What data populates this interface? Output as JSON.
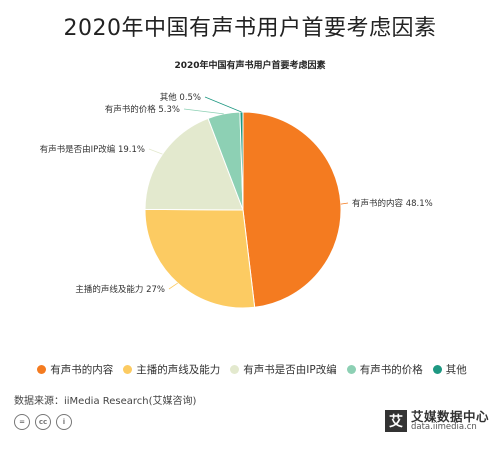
{
  "page_title": "2020年中国有声书用户首要考虑因素",
  "chart_data": {
    "type": "pie",
    "title": "2020年中国有声书用户首要考虑因素",
    "slices": [
      {
        "name": "有声书的内容",
        "label": "有声书的内容 48.1%",
        "value": 48.1,
        "color": "#F47B20"
      },
      {
        "name": "主播的声线及能力",
        "label": "主播的声线及能力 27%",
        "value": 27,
        "color": "#FCCB62"
      },
      {
        "name": "有声书是否由IP改编",
        "label": "有声书是否由IP改编 19.1%",
        "value": 19.1,
        "color": "#E3E9CE"
      },
      {
        "name": "有声书的价格",
        "label": "有声书的价格 5.3%",
        "value": 5.3,
        "color": "#8DD0B4"
      },
      {
        "name": "其他",
        "label": "其他 0.5%",
        "value": 0.5,
        "color": "#1E9882"
      }
    ],
    "legend_position": "bottom"
  },
  "source": "数据来源：iiMedia Research(艾媒咨询)",
  "cc_icons": [
    "=",
    "cc",
    "i"
  ],
  "logo": {
    "mark": "艾",
    "name": "艾媒数据中心",
    "url": "data.iimedia.cn"
  }
}
